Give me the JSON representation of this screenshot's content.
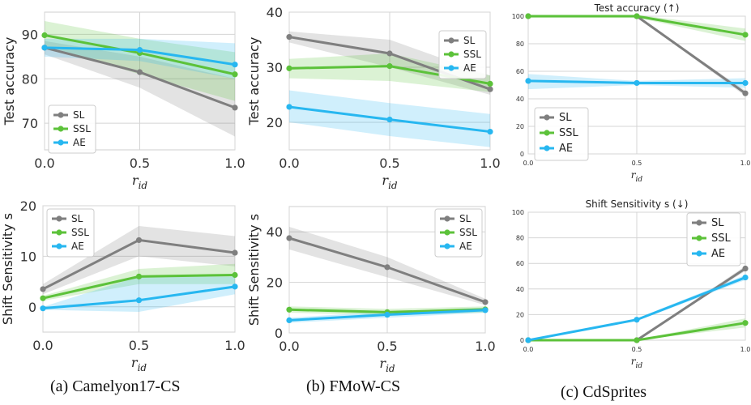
{
  "colors": {
    "SL": "#7f7f7f",
    "SSL": "#5cc23a",
    "AE": "#27b7f0",
    "grid": "#d4d4d4"
  },
  "captions": [
    "(a) Camelyon17-CS",
    "(b) FMoW-CS",
    "(c) CdSprites"
  ],
  "chart_data": [
    {
      "type": "line",
      "panel": "a-top",
      "title": "",
      "xlabel": "r_id",
      "ylabel": "Test accuracy",
      "x": [
        0,
        0.5,
        1.0
      ],
      "xticks": [
        "0.0",
        "0.5",
        "1.0"
      ],
      "ylim": [
        64,
        95
      ],
      "yticks": [
        70,
        80,
        90
      ],
      "legend": "bottom-left",
      "series": [
        {
          "name": "SL",
          "values": [
            87,
            81.5,
            73.5
          ],
          "band": [
            [
              85.5,
              88.5
            ],
            [
              78,
              85
            ],
            [
              67,
              80
            ]
          ]
        },
        {
          "name": "SSL",
          "values": [
            89.8,
            85.8,
            81
          ],
          "band": [
            [
              87.5,
              93
            ],
            [
              81,
              89
            ],
            [
              75,
              86
            ]
          ]
        },
        {
          "name": "AE",
          "values": [
            87,
            86.5,
            83.2
          ],
          "band": [
            [
              85,
              89
            ],
            [
              84,
              89
            ],
            [
              80,
              88
            ]
          ]
        }
      ]
    },
    {
      "type": "line",
      "panel": "b-top",
      "title": "",
      "xlabel": "r_id",
      "ylabel": "Test accuracy",
      "x": [
        0,
        0.5,
        1.0
      ],
      "xticks": [
        "0.0",
        "0.5",
        "1.0"
      ],
      "ylim": [
        15,
        40
      ],
      "yticks": [
        20,
        30,
        40
      ],
      "legend": "top-right",
      "series": [
        {
          "name": "SL",
          "values": [
            35.5,
            32.5,
            26
          ],
          "band": [
            [
              34.5,
              36.5
            ],
            [
              30,
              35
            ],
            [
              25,
              28.5
            ]
          ]
        },
        {
          "name": "SSL",
          "values": [
            29.8,
            30.2,
            27
          ],
          "band": [
            [
              28,
              31.5
            ],
            [
              27.5,
              32.5
            ],
            [
              25.5,
              28.5
            ]
          ]
        },
        {
          "name": "AE",
          "values": [
            22.8,
            20.5,
            18.3
          ],
          "band": [
            [
              20,
              25.8
            ],
            [
              17.5,
              23.5
            ],
            [
              15.5,
              21.5
            ]
          ]
        }
      ]
    },
    {
      "type": "line",
      "panel": "c-top",
      "title": "Test accuracy (↑)",
      "xlabel": "r_id",
      "ylabel": "",
      "x": [
        0,
        0.5,
        1.0
      ],
      "xticks": [
        "0.0",
        "0.5",
        "1.0"
      ],
      "ylim": [
        0,
        100
      ],
      "yticks": [
        0,
        20,
        40,
        60,
        80,
        100
      ],
      "legend": "bottom-left",
      "series": [
        {
          "name": "SL",
          "values": [
            100,
            100,
            44
          ],
          "band": [
            [
              99.5,
              100
            ],
            [
              99.5,
              100
            ],
            [
              42,
              46
            ]
          ]
        },
        {
          "name": "SSL",
          "values": [
            100,
            100,
            86.5
          ],
          "band": [
            [
              99,
              101
            ],
            [
              99,
              101
            ],
            [
              82,
              91
            ]
          ]
        },
        {
          "name": "AE",
          "values": [
            53,
            51.5,
            51.5
          ],
          "band": [
            [
              47,
              58
            ],
            [
              50,
              53
            ],
            [
              48,
              55
            ]
          ]
        }
      ]
    },
    {
      "type": "line",
      "panel": "a-bottom",
      "title": "",
      "xlabel": "r_id",
      "ylabel": "Shift Sensitivity s",
      "x": [
        0,
        0.5,
        1.0
      ],
      "xticks": [
        "0.0",
        "0.5",
        "1.0"
      ],
      "ylim": [
        -5,
        20
      ],
      "yticks": [
        0,
        10,
        20
      ],
      "legend": "top-left",
      "series": [
        {
          "name": "SL",
          "values": [
            3.5,
            13.2,
            10.7
          ],
          "band": [
            [
              2.5,
              4.5
            ],
            [
              10,
              16
            ],
            [
              8,
              14
            ]
          ]
        },
        {
          "name": "SSL",
          "values": [
            1.7,
            6,
            6.3
          ],
          "band": [
            [
              1.2,
              2.2
            ],
            [
              4.5,
              7.5
            ],
            [
              4.5,
              8.5
            ]
          ]
        },
        {
          "name": "AE",
          "values": [
            -0.3,
            1.3,
            4
          ],
          "band": [
            [
              -0.6,
              0
            ],
            [
              -1,
              6
            ],
            [
              2.5,
              6
            ]
          ]
        }
      ]
    },
    {
      "type": "line",
      "panel": "b-bottom",
      "title": "",
      "xlabel": "r_id",
      "ylabel": "Shift Sensitivity s",
      "x": [
        0,
        0.5,
        1.0
      ],
      "xticks": [
        "0.0",
        "0.5",
        "1.0"
      ],
      "ylim": [
        0,
        50
      ],
      "yticks": [
        0,
        20,
        40
      ],
      "legend": "top-right",
      "series": [
        {
          "name": "SL",
          "values": [
            37.5,
            26,
            12.2
          ],
          "band": [
            [
              33,
              42
            ],
            [
              22,
              30
            ],
            [
              11,
              13.5
            ]
          ]
        },
        {
          "name": "SSL",
          "values": [
            9.2,
            8.2,
            9.3
          ],
          "band": [
            [
              8,
              10.5
            ],
            [
              7,
              9.5
            ],
            [
              8,
              10.5
            ]
          ]
        },
        {
          "name": "AE",
          "values": [
            5,
            7.2,
            9
          ],
          "band": [
            [
              4,
              6
            ],
            [
              6,
              8.5
            ],
            [
              8,
              10
            ]
          ]
        }
      ]
    },
    {
      "type": "line",
      "panel": "c-bottom",
      "title": "Shift Sensitivity s (↓)",
      "xlabel": "r_id",
      "ylabel": "",
      "x": [
        0,
        0.5,
        1.0
      ],
      "xticks": [
        "0.0",
        "0.5",
        "1.0"
      ],
      "ylim": [
        0,
        100
      ],
      "yticks": [
        0,
        20,
        40,
        60,
        80,
        100
      ],
      "legend": "top-right",
      "series": [
        {
          "name": "SL",
          "values": [
            0,
            0,
            56
          ],
          "band": [
            [
              0,
              0.5
            ],
            [
              0,
              0.5
            ],
            [
              54,
              58
            ]
          ]
        },
        {
          "name": "SSL",
          "values": [
            0,
            0,
            13.5
          ],
          "band": [
            [
              0,
              0.5
            ],
            [
              0,
              0.5
            ],
            [
              10,
              17
            ]
          ]
        },
        {
          "name": "AE",
          "values": [
            0,
            16,
            49
          ],
          "band": [
            [
              0,
              0.5
            ],
            [
              15,
              17
            ],
            [
              47,
              51
            ]
          ]
        }
      ]
    }
  ]
}
